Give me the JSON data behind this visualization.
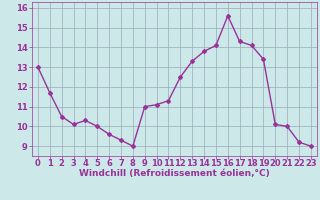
{
  "x": [
    0,
    1,
    2,
    3,
    4,
    5,
    6,
    7,
    8,
    9,
    10,
    11,
    12,
    13,
    14,
    15,
    16,
    17,
    18,
    19,
    20,
    21,
    22,
    23
  ],
  "y": [
    13.0,
    11.7,
    10.5,
    10.1,
    10.3,
    10.0,
    9.6,
    9.3,
    9.0,
    11.0,
    11.1,
    11.3,
    12.5,
    13.3,
    13.8,
    14.1,
    15.6,
    14.3,
    14.1,
    13.4,
    10.1,
    10.0,
    9.2,
    9.0
  ],
  "line_color": "#993399",
  "marker": "D",
  "marker_size": 2.0,
  "linewidth": 1.0,
  "bg_color": "#cce8e8",
  "grid_color": "#99aabb",
  "xlabel": "Windchill (Refroidissement éolien,°C)",
  "xlabel_color": "#993399",
  "xlabel_fontsize": 6.5,
  "tick_color": "#993399",
  "tick_fontsize": 6.0,
  "ylim": [
    8.5,
    16.3
  ],
  "yticks": [
    9,
    10,
    11,
    12,
    13,
    14,
    15,
    16
  ],
  "xlim": [
    -0.5,
    23.5
  ],
  "xticks": [
    0,
    1,
    2,
    3,
    4,
    5,
    6,
    7,
    8,
    9,
    10,
    11,
    12,
    13,
    14,
    15,
    16,
    17,
    18,
    19,
    20,
    21,
    22,
    23
  ]
}
